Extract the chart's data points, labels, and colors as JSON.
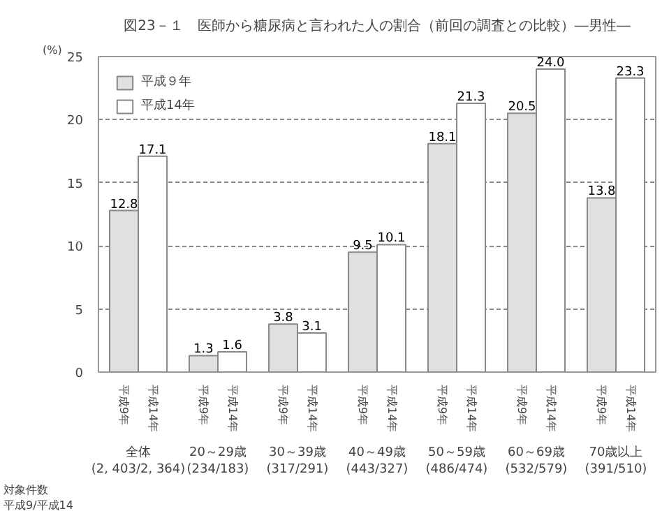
{
  "chart_data": {
    "type": "bar",
    "title": "図23－１　医師から糖尿病と言われた人の割合（前回の調査との比較）―男性―",
    "ylabel": "(%)",
    "categories": [
      "全体\n(2, 403/2, 364)",
      "20～29歳\n(234/183)",
      "30～39歳\n(317/291)",
      "40～49歳\n(443/327)",
      "50～59歳\n(486/474)",
      "60～69歳\n(532/579)",
      "70歳以上\n(391/510)"
    ],
    "series": [
      {
        "name": "平成９年",
        "color": "#e0e0e0",
        "values": [
          12.8,
          1.3,
          3.8,
          9.5,
          18.1,
          20.5,
          13.8
        ],
        "value_labels": [
          "12.8",
          "1.3",
          "3.8",
          "9.5",
          "18.1",
          "20.5",
          "13.8"
        ]
      },
      {
        "name": "平成14年",
        "color": "#ffffff",
        "values": [
          17.1,
          1.6,
          3.1,
          10.1,
          21.3,
          24.0,
          23.3
        ],
        "value_labels": [
          "17.1",
          "1.6",
          "3.1",
          "10.1",
          "21.3",
          "24.0",
          "23.3"
        ]
      }
    ],
    "annotations": [
      "対象件数",
      "平成9/平成14",
      "平成9年",
      "平成14年"
    ],
    "ylim": [
      0,
      25
    ],
    "yticks": [
      0,
      5,
      10,
      15,
      20,
      25
    ],
    "grid": "y",
    "legend": "top left"
  }
}
